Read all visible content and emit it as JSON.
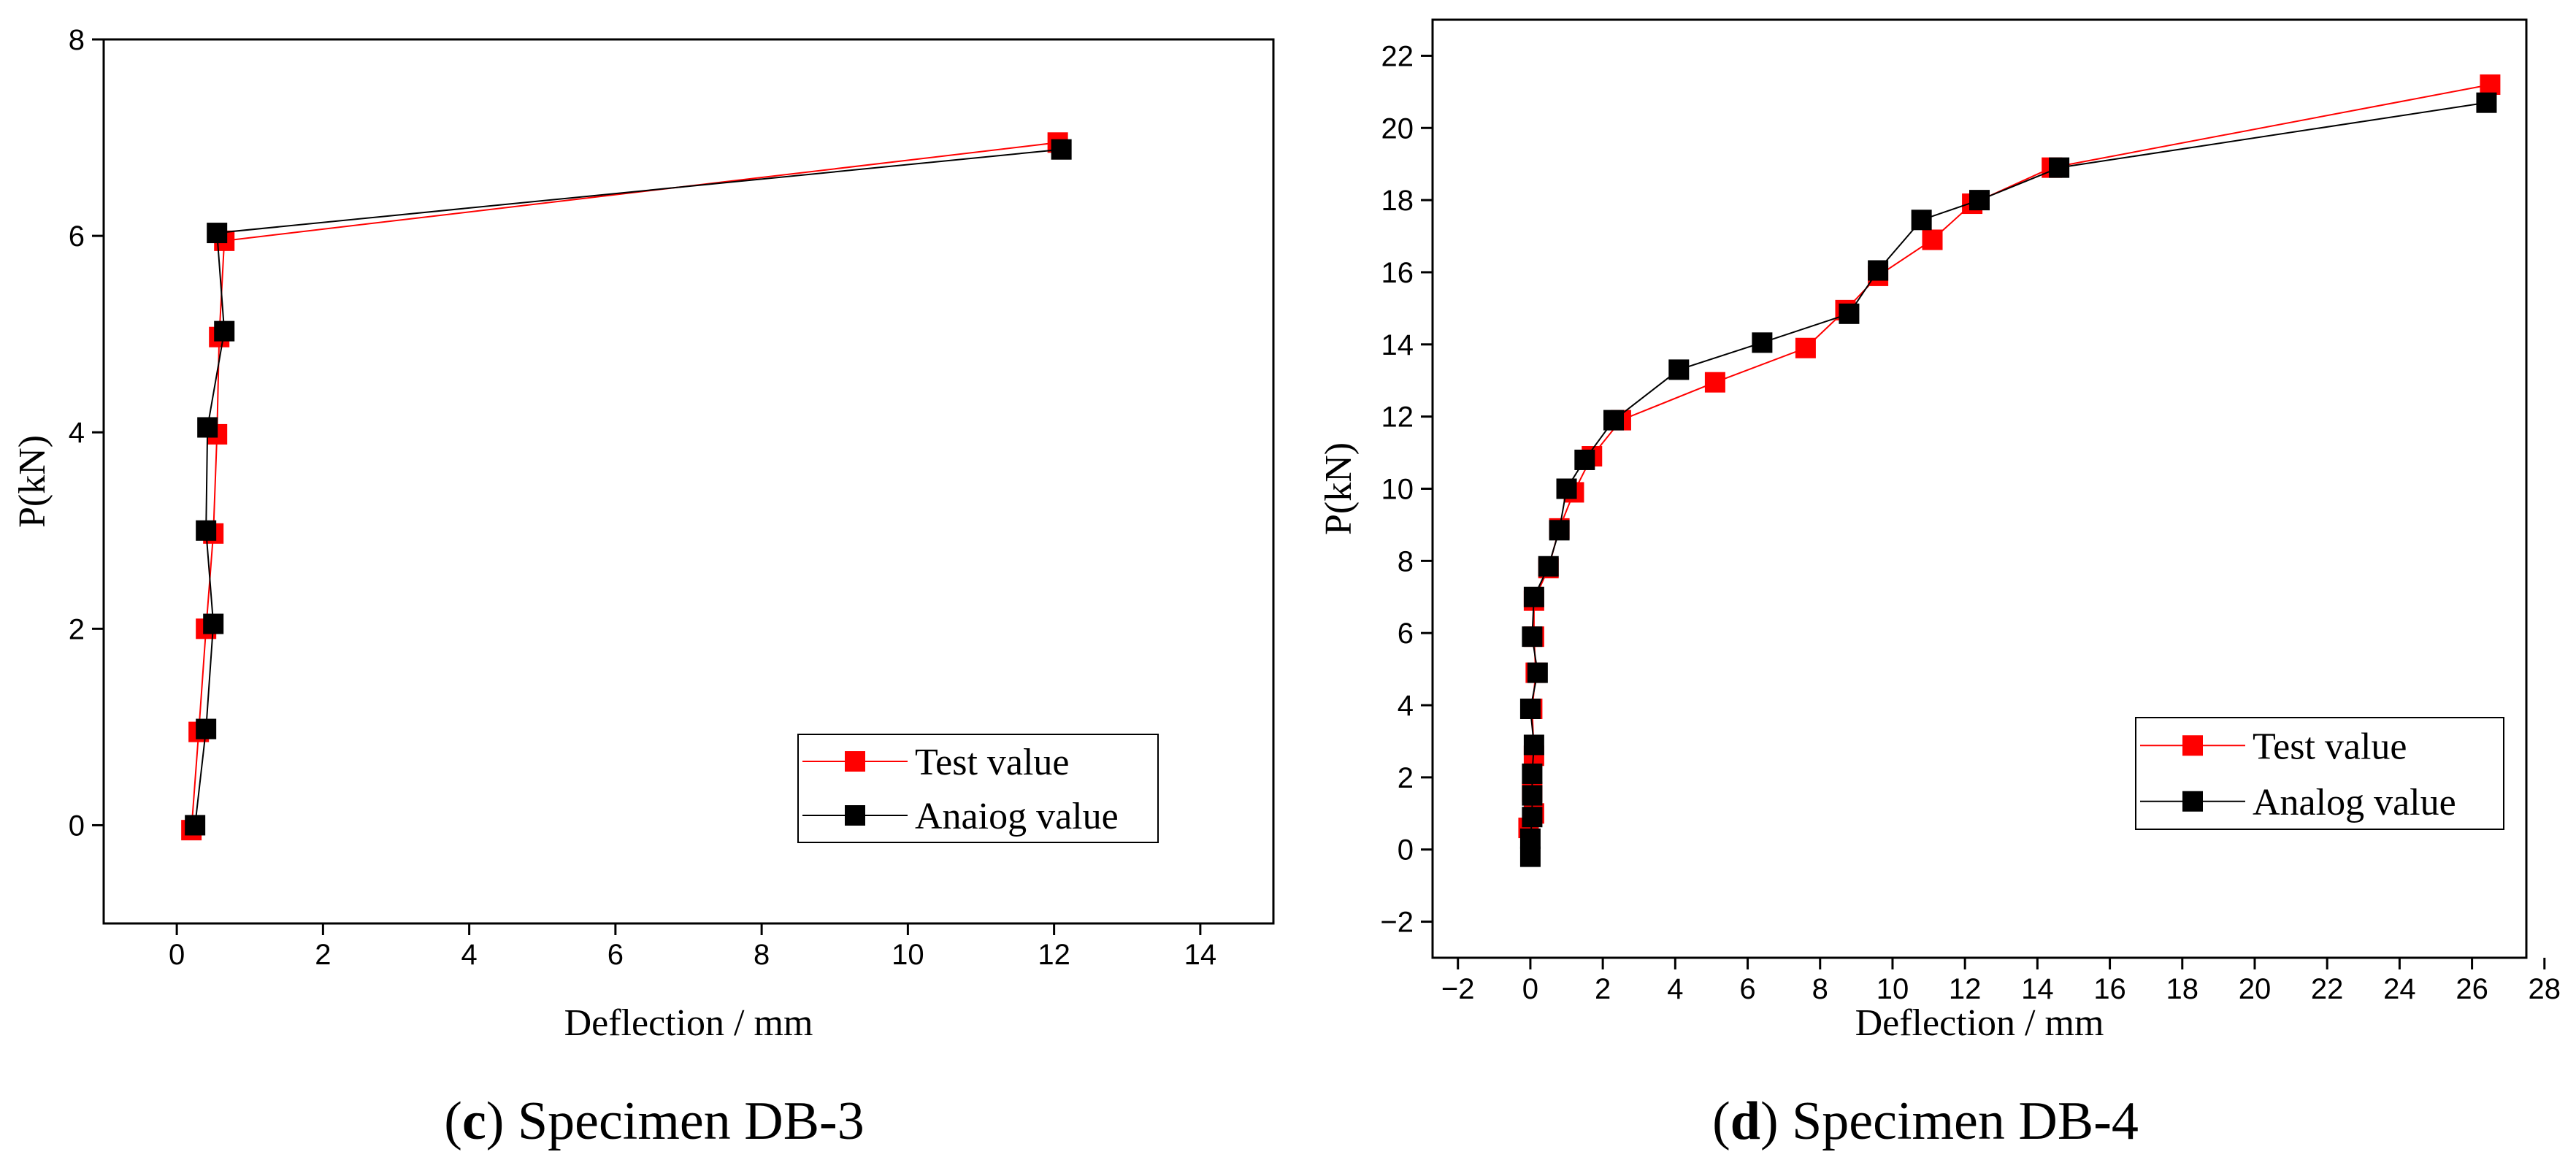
{
  "chart_data": [
    {
      "type": "line",
      "x_label": "Deflection / mm",
      "y_label": "P(kN)",
      "caption_parts": [
        "(",
        "c",
        ") Specimen DB-3"
      ],
      "xlim": [
        -1,
        15
      ],
      "ylim": [
        -1,
        8
      ],
      "xticks": [
        0,
        2,
        4,
        6,
        8,
        10,
        12,
        14
      ],
      "yticks": [
        0,
        2,
        4,
        6,
        8
      ],
      "series": [
        {
          "name": "Test value",
          "color": "#ff0000",
          "x": [
            0.2,
            0.3,
            0.4,
            0.5,
            0.55,
            0.58,
            0.65,
            12.05
          ],
          "values": [
            -0.05,
            0.95,
            2.0,
            2.97,
            3.98,
            4.97,
            5.95,
            6.95
          ]
        },
        {
          "name": "Anaiog value",
          "color": "#000000",
          "x": [
            0.25,
            0.4,
            0.5,
            0.4,
            0.42,
            0.65,
            0.55,
            12.1
          ],
          "values": [
            0.0,
            0.98,
            2.05,
            3.0,
            4.05,
            5.03,
            6.03,
            6.88
          ]
        }
      ]
    },
    {
      "type": "line",
      "x_label": "Deflection / mm",
      "y_label": "P(kN)",
      "caption_parts": [
        "(",
        "d",
        ") Specimen DB-4"
      ],
      "xlim": [
        -2.7,
        27.5
      ],
      "ylim": [
        -3,
        23
      ],
      "xticks": [
        {
          "value": -2,
          "label": "−2"
        },
        0,
        2,
        4,
        6,
        8,
        10,
        12,
        14,
        16,
        18,
        20,
        22,
        24,
        26,
        28
      ],
      "yticks": [
        {
          "value": -2,
          "label": "−2"
        },
        0,
        2,
        4,
        6,
        8,
        10,
        12,
        14,
        16,
        18,
        20,
        22
      ],
      "series": [
        {
          "name": "Test value",
          "color": "#ff0000",
          "x": [
            -0.05,
            0.1,
            0.05,
            0.1,
            0.05,
            0.15,
            0.1,
            0.1,
            0.5,
            0.8,
            1.2,
            1.7,
            2.5,
            5.1,
            7.6,
            8.7,
            9.6,
            11.1,
            12.2,
            14.4,
            26.5
          ],
          "values": [
            0.6,
            1.0,
            1.6,
            2.6,
            3.9,
            4.9,
            5.9,
            6.9,
            7.8,
            8.9,
            9.9,
            10.9,
            11.9,
            12.95,
            13.9,
            14.95,
            15.9,
            16.9,
            17.9,
            18.9,
            21.2
          ]
        },
        {
          "name": "Analog value",
          "color": "#000000",
          "x": [
            0,
            0,
            0.05,
            0.05,
            0.05,
            0.1,
            0,
            0.2,
            0.05,
            0.1,
            0.5,
            0.8,
            1.0,
            1.5,
            2.3,
            4.1,
            6.4,
            8.8,
            9.6,
            10.8,
            12.4,
            14.6,
            26.4
          ],
          "values": [
            -0.2,
            0.3,
            0.9,
            1.5,
            2.1,
            2.9,
            3.9,
            4.9,
            5.9,
            7.0,
            7.85,
            8.85,
            10.0,
            10.8,
            11.9,
            13.3,
            14.05,
            14.85,
            16.05,
            17.45,
            18.0,
            18.9,
            20.7
          ]
        }
      ]
    }
  ]
}
